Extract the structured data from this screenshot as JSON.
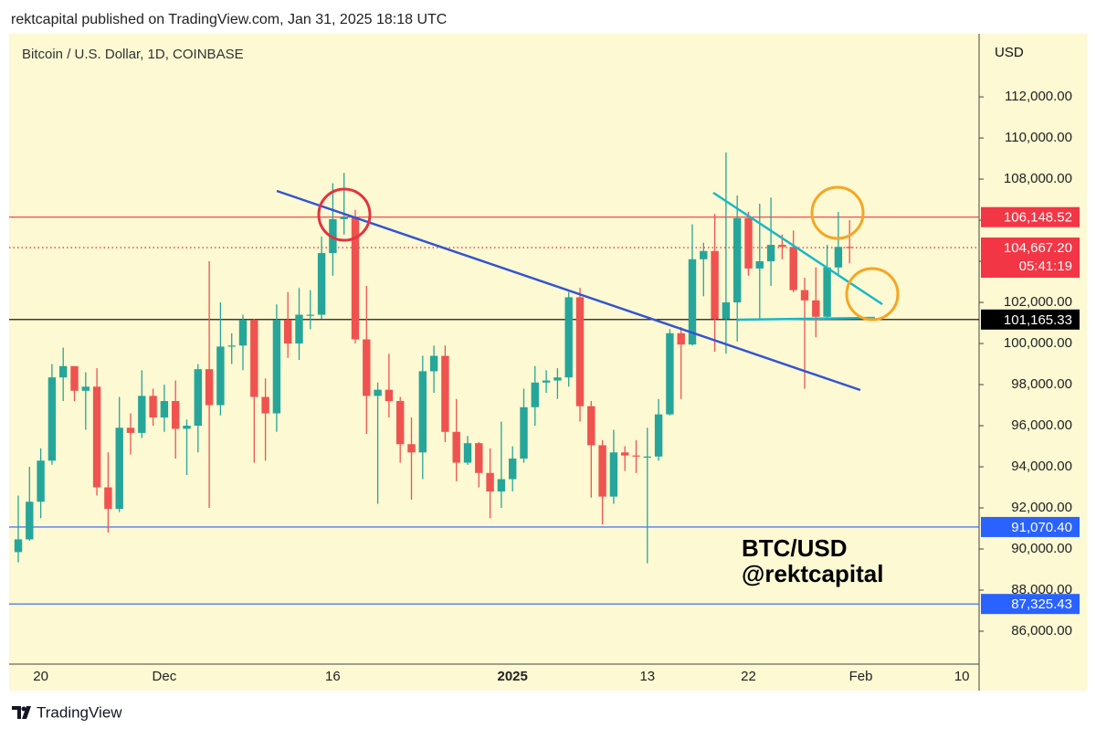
{
  "header": "rektcapital published on TradingView.com, Jan 31, 2025 18:18 UTC",
  "footer": "TradingView",
  "chart_data": {
    "type": "candlestick",
    "title": "Bitcoin / U.S. Dollar, 1D, COINBASE",
    "currency": "USD",
    "annotations": [
      "BTC/USD",
      "@rektcapital"
    ],
    "up_color": "#26a69a",
    "down_color": "#ef5350",
    "grid": false,
    "categories": [
      null,
      null,
      "20",
      null,
      null,
      null,
      null,
      null,
      null,
      null,
      null,
      null,
      null,
      "Dec",
      null,
      null,
      null,
      null,
      null,
      null,
      null,
      null,
      null,
      null,
      null,
      null,
      null,
      null,
      "16",
      null,
      null,
      null,
      null,
      null,
      null,
      null,
      null,
      null,
      null,
      null,
      null,
      null,
      null,
      null,
      "2025",
      null,
      null,
      null,
      null,
      null,
      null,
      null,
      null,
      null,
      null,
      null,
      "13",
      null,
      null,
      null,
      null,
      null,
      null,
      null,
      null,
      "22",
      null,
      null,
      null,
      null,
      null,
      null,
      null,
      null,
      null,
      "Feb",
      null,
      null,
      null,
      null,
      null,
      null,
      null,
      null,
      "10",
      null
    ],
    "open": [
      89850,
      90470,
      92300,
      94300,
      98350,
      98900,
      97700,
      97900,
      93000,
      91950,
      95900,
      95650,
      97450,
      96400,
      97200,
      95850,
      96000,
      98750,
      97000,
      99850,
      99900,
      101150,
      97400,
      96600,
      101150,
      100000,
      101400,
      101400,
      104400,
      106050,
      106150,
      100200,
      97450,
      97750,
      97200,
      95100,
      94700,
      98650,
      99400,
      95700,
      94200,
      95150,
      93700,
      92800,
      93400,
      94400,
      96900,
      98100,
      98200,
      98350,
      102250,
      96950,
      95050,
      92550,
      94700,
      94550,
      94500,
      94500,
      96550,
      100500,
      99950,
      104100,
      104500,
      101200,
      102000,
      106100,
      103650,
      104000,
      104800,
      104700,
      102600,
      102100,
      101300,
      103700,
      104700,
      null,
      null,
      null,
      null,
      null,
      null,
      null,
      null,
      null,
      null,
      null
    ],
    "high": [
      92600,
      94000,
      94900,
      99000,
      99800,
      98700,
      98600,
      98800,
      94700,
      97400,
      96600,
      98700,
      97800,
      98000,
      98200,
      96300,
      99000,
      104000,
      102000,
      100500,
      101400,
      101200,
      98300,
      101900,
      102500,
      102700,
      102600,
      105200,
      107800,
      108300,
      106500,
      102800,
      98100,
      99500,
      97400,
      96400,
      99400,
      99900,
      99900,
      97300,
      95500,
      95200,
      94900,
      96200,
      95000,
      97800,
      98900,
      98700,
      98800,
      102500,
      102700,
      97200,
      95300,
      95800,
      95000,
      95300,
      95900,
      97300,
      100700,
      100800,
      105800,
      104900,
      106300,
      109300,
      107200,
      106400,
      106800,
      107100,
      105300,
      105500,
      103200,
      103700,
      104800,
      106400,
      106000,
      null,
      null,
      null,
      null,
      null,
      null,
      null,
      null,
      null,
      null,
      null
    ],
    "low": [
      89350,
      90400,
      91500,
      94100,
      97200,
      97200,
      95800,
      92600,
      90800,
      91800,
      94600,
      95400,
      96000,
      95700,
      94400,
      93600,
      94700,
      92000,
      96500,
      99000,
      98700,
      94200,
      94300,
      95700,
      99300,
      99200,
      100700,
      101200,
      103300,
      105300,
      100000,
      95600,
      92200,
      96400,
      94200,
      92400,
      93400,
      97600,
      95200,
      93300,
      94100,
      93000,
      91500,
      92000,
      92800,
      94200,
      96000,
      97600,
      97300,
      97900,
      96200,
      92500,
      91200,
      92200,
      93800,
      93700,
      89300,
      94300,
      96500,
      97300,
      99900,
      102300,
      99600,
      99500,
      100100,
      103300,
      101200,
      102800,
      104100,
      102500,
      97800,
      100300,
      101200,
      103300,
      103900,
      null,
      null,
      null,
      null,
      null,
      null,
      null,
      null,
      null,
      null,
      null
    ],
    "close": [
      90470,
      92300,
      94300,
      98350,
      98900,
      97700,
      97900,
      93000,
      91950,
      95900,
      95650,
      97450,
      96400,
      97200,
      95850,
      96000,
      98750,
      97000,
      99850,
      99900,
      101150,
      97400,
      96600,
      101150,
      100000,
      101400,
      101400,
      104400,
      106050,
      106150,
      100200,
      97450,
      97750,
      97200,
      95100,
      94700,
      98650,
      99400,
      95700,
      94200,
      95150,
      93700,
      92800,
      93400,
      94400,
      96900,
      98100,
      98200,
      98350,
      102250,
      96950,
      95050,
      92550,
      94700,
      94550,
      94500,
      94500,
      96550,
      100500,
      99950,
      104100,
      104500,
      101200,
      102000,
      106100,
      103650,
      104000,
      104800,
      104700,
      102600,
      102100,
      101300,
      103700,
      104700,
      104667.2,
      null,
      null,
      null,
      null,
      null,
      null,
      null,
      null,
      null,
      null,
      null
    ],
    "ylim": [
      84400,
      115070
    ],
    "yticks": [
      {
        "value": 86000,
        "label": "86,000.00"
      },
      {
        "value": 88000,
        "label": "88,000.00"
      },
      {
        "value": 90000,
        "label": "90,000.00"
      },
      {
        "value": 92000,
        "label": "92,000.00"
      },
      {
        "value": 94000,
        "label": "94,000.00"
      },
      {
        "value": 96000,
        "label": "96,000.00"
      },
      {
        "value": 98000,
        "label": "98,000.00"
      },
      {
        "value": 100000,
        "label": "100,000.00"
      },
      {
        "value": 102000,
        "label": "102,000.00"
      },
      {
        "value": 104000,
        "label": "104,000.00"
      },
      {
        "value": 106000,
        "label": "106,000.00"
      },
      {
        "value": 108000,
        "label": "108,000.00"
      },
      {
        "value": 110000,
        "label": "110,000.00"
      },
      {
        "value": 112000,
        "label": "112,000.00"
      }
    ],
    "levels": [
      {
        "value": 106148.52,
        "label": "106,148.52",
        "color": "#f23645",
        "style": "solid"
      },
      {
        "value": 104667.2,
        "label": "104,667.20",
        "countdown": "05:41:19",
        "color": "#f23645",
        "style": "dotted"
      },
      {
        "value": 101165.33,
        "label": "101,165.33",
        "color": "#000000",
        "style": "solid"
      },
      {
        "value": 91070.4,
        "label": "91,070.40",
        "color": "#2962ff",
        "style": "solid"
      },
      {
        "value": 87325.43,
        "label": "87,325.43",
        "color": "#2962ff",
        "style": "solid"
      }
    ]
  }
}
